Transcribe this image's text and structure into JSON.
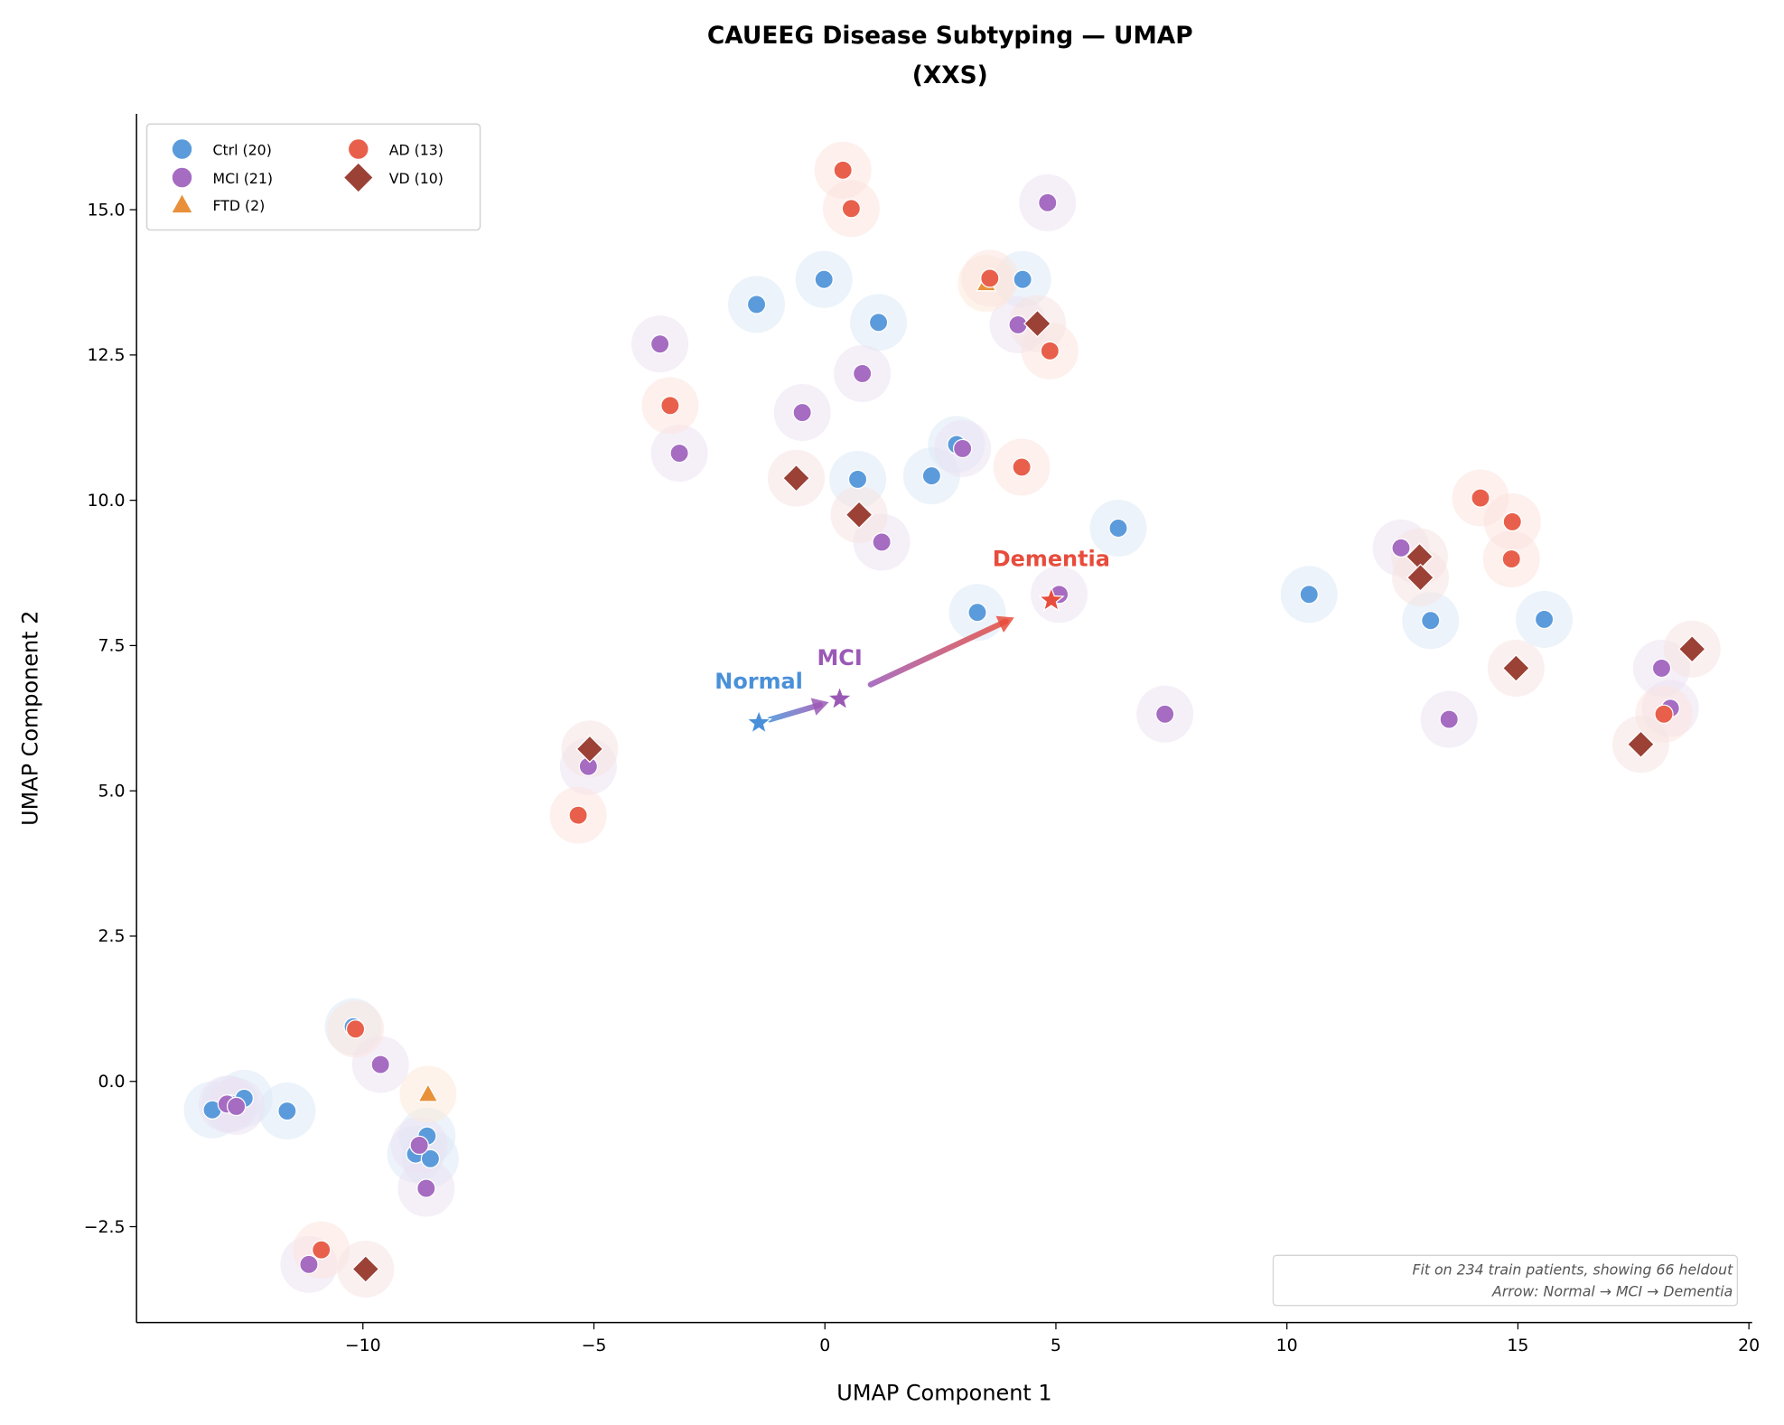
{
  "chart_data": {
    "type": "scatter",
    "title": "CAUEEG Disease Subtyping — UMAP",
    "subtitle": "(XXS)",
    "xlabel": "UMAP Component 1",
    "ylabel": "UMAP Component 2",
    "xlim": [
      -14.9,
      20.07
    ],
    "ylim": [
      -4.15,
      16.65
    ],
    "xticks": [
      -10,
      -5,
      0,
      5,
      10,
      15,
      20
    ],
    "xtick_labels": [
      "−10",
      "−5",
      "0",
      "5",
      "10",
      "15",
      "20"
    ],
    "yticks": [
      -2.5,
      0,
      2.5,
      5,
      7.5,
      10,
      12.5,
      15
    ],
    "ytick_labels": [
      "−2.5",
      "0.0",
      "2.5",
      "5.0",
      "7.5",
      "10.0",
      "12.5",
      "15.0"
    ],
    "grid": false,
    "legend_position": "top-left",
    "series": [
      {
        "name": "Ctrl (20)",
        "marker": "circle",
        "color": "#5b9bdb",
        "halo": "#dce9f6",
        "points": [
          [
            -1.48,
            13.37
          ],
          [
            -0.02,
            13.8
          ],
          [
            1.16,
            13.06
          ],
          [
            4.28,
            13.8
          ],
          [
            0.71,
            10.36
          ],
          [
            2.31,
            10.42
          ],
          [
            2.85,
            10.96
          ],
          [
            6.35,
            9.52
          ],
          [
            3.3,
            8.07
          ],
          [
            10.48,
            8.38
          ],
          [
            13.11,
            7.93
          ],
          [
            15.57,
            7.95
          ],
          [
            -10.21,
            0.94
          ],
          [
            -13.26,
            -0.49
          ],
          [
            -12.87,
            -0.39
          ],
          [
            -12.57,
            -0.29
          ],
          [
            -11.64,
            -0.51
          ],
          [
            -8.61,
            -0.94
          ],
          [
            -8.86,
            -1.25
          ],
          [
            -8.54,
            -1.33
          ]
        ]
      },
      {
        "name": "MCI (21)",
        "marker": "circle",
        "color": "#a56cc1",
        "halo": "#ece2f2",
        "points": [
          [
            4.82,
            15.12
          ],
          [
            -3.57,
            12.69
          ],
          [
            0.81,
            12.18
          ],
          [
            -0.49,
            11.51
          ],
          [
            -3.15,
            10.81
          ],
          [
            4.18,
            13.02
          ],
          [
            2.98,
            10.89
          ],
          [
            1.23,
            9.28
          ],
          [
            5.07,
            8.38
          ],
          [
            12.47,
            9.18
          ],
          [
            7.36,
            6.32
          ],
          [
            13.51,
            6.23
          ],
          [
            18.11,
            7.11
          ],
          [
            18.3,
            6.42
          ],
          [
            -5.12,
            5.42
          ],
          [
            -9.62,
            0.29
          ],
          [
            -12.94,
            -0.39
          ],
          [
            -12.74,
            -0.43
          ],
          [
            -8.78,
            -1.1
          ],
          [
            -8.63,
            -1.84
          ],
          [
            -11.17,
            -3.15
          ]
        ]
      },
      {
        "name": "FTD (2)",
        "marker": "triangle",
        "color": "#e8913a",
        "halo": "#fbeadb",
        "points": [
          [
            3.49,
            13.73
          ],
          [
            -8.59,
            -0.22
          ]
        ]
      },
      {
        "name": "AD (13)",
        "marker": "circle",
        "color": "#e8604c",
        "halo": "#fbe3df",
        "points": [
          [
            0.39,
            15.68
          ],
          [
            0.57,
            15.02
          ],
          [
            3.57,
            13.82
          ],
          [
            4.87,
            12.57
          ],
          [
            -3.35,
            11.63
          ],
          [
            4.26,
            10.57
          ],
          [
            14.19,
            10.04
          ],
          [
            14.88,
            9.63
          ],
          [
            14.86,
            8.99
          ],
          [
            18.16,
            6.32
          ],
          [
            -5.34,
            4.58
          ],
          [
            -10.16,
            0.9
          ],
          [
            -10.9,
            -2.9
          ]
        ]
      },
      {
        "name": "VD (10)",
        "marker": "diamond",
        "color": "#9b4136",
        "halo": "#f6e3e1",
        "points": [
          [
            4.6,
            13.04
          ],
          [
            -0.62,
            10.38
          ],
          [
            0.74,
            9.75
          ],
          [
            12.87,
            9.03
          ],
          [
            12.89,
            8.67
          ],
          [
            14.96,
            7.11
          ],
          [
            18.77,
            7.44
          ],
          [
            17.66,
            5.8
          ],
          [
            -5.09,
            5.72
          ],
          [
            -9.94,
            -3.23
          ]
        ]
      }
    ],
    "centroids": [
      {
        "label": "Normal",
        "x": -1.43,
        "y": 6.17,
        "color": "#4a90d9"
      },
      {
        "label": "MCI",
        "x": 0.32,
        "y": 6.58,
        "color": "#9b59b6"
      },
      {
        "label": "Dementia",
        "x": 4.9,
        "y": 8.28,
        "color": "#e74c3c"
      }
    ],
    "annotation": [
      "Fit on 234 train patients, showing 66 heldout",
      "Arrow: Normal → MCI → Dementia"
    ]
  }
}
